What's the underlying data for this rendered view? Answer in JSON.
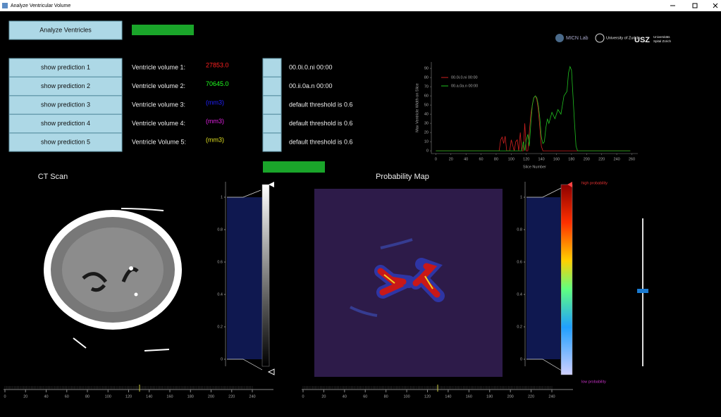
{
  "window": {
    "title": "Analyze Ventricular Volume"
  },
  "toolbar": {
    "analyze_button": "Analyze Ventricles"
  },
  "predictions": [
    {
      "button": "show prediction 1",
      "label": "Ventricle volume 1:",
      "value": "27853.0",
      "value_color": "#ff2020",
      "file": "00.0i.0.ni  00:00"
    },
    {
      "button": "show prediction 2",
      "label": "Ventricle volume 2:",
      "value": "70645.0",
      "value_color": "#20ff20",
      "file": "00.ii.0a.n  00:00"
    },
    {
      "button": "show prediction 3",
      "label": "Ventricle volume 3:",
      "value": "(mm3)",
      "value_color": "#2020ff",
      "file": "default threshold is 0.6"
    },
    {
      "button": "show prediction 4",
      "label": "Ventricle volume 4:",
      "value": "(mm3)",
      "value_color": "#e020e0",
      "file": "default threshold is 0.6"
    },
    {
      "button": "show prediction 5",
      "label": "Ventricle Volume 5:",
      "value": "(mm3)",
      "value_color": "#e0e020",
      "file": "default threshold is 0.6"
    }
  ],
  "logos": {
    "micn": "MICN Lab",
    "uzh": "University of Zurich",
    "usz": "USZ",
    "usz_sub1": "Universitäts",
    "usz_sub2": "Spital Zürich"
  },
  "chart_data": {
    "type": "line",
    "x_label": "Slice Number",
    "y_label": "Max Ventricle Width on Slice",
    "x": [
      0,
      80,
      84,
      86,
      88,
      90,
      92,
      94,
      96,
      98,
      100,
      104,
      106,
      108,
      110,
      112,
      114,
      116,
      118,
      120,
      122,
      124,
      126,
      128,
      130,
      132,
      134,
      136,
      138,
      140,
      142,
      144,
      146,
      148,
      150,
      154,
      158,
      162,
      166,
      170,
      174,
      176,
      178,
      180,
      182,
      184,
      186,
      188,
      200,
      258
    ],
    "series": [
      {
        "name": "00.0i.0.ni 00:00",
        "color": "#d02020",
        "values": [
          0,
          0,
          0,
          12,
          15,
          8,
          16,
          0,
          0,
          0,
          12,
          0,
          10,
          12,
          0,
          20,
          0,
          0,
          30,
          0,
          0,
          20,
          40,
          50,
          58,
          60,
          56,
          45,
          25,
          5,
          0,
          0,
          0,
          0,
          0,
          0,
          0,
          0,
          0,
          0,
          0,
          0,
          0,
          0,
          0,
          0,
          0,
          0,
          0,
          0
        ]
      },
      {
        "name": "00.a.0a.n 00:00",
        "color": "#20c020",
        "values": [
          0,
          0,
          0,
          0,
          0,
          0,
          0,
          0,
          0,
          0,
          0,
          0,
          0,
          0,
          0,
          0,
          0,
          10,
          0,
          12,
          18,
          5,
          30,
          50,
          58,
          60,
          58,
          50,
          35,
          15,
          8,
          10,
          25,
          35,
          30,
          42,
          35,
          45,
          40,
          60,
          65,
          85,
          92,
          88,
          60,
          30,
          5,
          0,
          0,
          0
        ]
      }
    ],
    "xlim": [
      -6,
      268
    ],
    "ylim": [
      -3,
      97
    ],
    "xticks": [
      0,
      20,
      40,
      60,
      80,
      100,
      120,
      140,
      160,
      180,
      200,
      220,
      240,
      260
    ],
    "yticks": [
      0,
      10,
      20,
      30,
      40,
      50,
      60,
      70,
      80,
      90
    ],
    "legend": "upper-left"
  },
  "ct_scan": {
    "title": "CT Scan",
    "histogram_ticks": [
      0,
      0.2,
      0.4,
      0.6,
      0.8,
      1
    ],
    "slider_ticks": [
      0,
      20,
      40,
      60,
      80,
      100,
      120,
      140,
      160,
      180,
      200,
      220,
      240
    ]
  },
  "probability_map": {
    "title": "Probability Map",
    "histogram_ticks": [
      0,
      0.2,
      0.4,
      0.6,
      0.8,
      1
    ],
    "high_label": "high probability",
    "low_label": "low probability",
    "slider_ticks": [
      0,
      20,
      40,
      60,
      80,
      100,
      120,
      140,
      160,
      180,
      200,
      220,
      240
    ]
  }
}
